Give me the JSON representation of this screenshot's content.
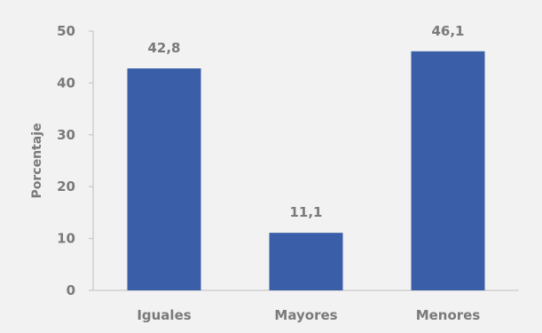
{
  "chart_data": {
    "type": "bar",
    "categories": [
      "Iguales",
      "Mayores",
      "Menores"
    ],
    "values": [
      42.8,
      11.1,
      46.1
    ],
    "value_labels": [
      "42,8",
      "11,1",
      "46,1"
    ],
    "title": "",
    "xlabel": "",
    "ylabel": "Porcentaje",
    "ylim": [
      0,
      50
    ],
    "yticks": [
      "0",
      "10",
      "20",
      "30",
      "40",
      "50"
    ],
    "grid": false,
    "legend": "none",
    "bar_color": "#3a5fa8",
    "background_color": "#f2f2f2",
    "axis_color": "#bfbfbf",
    "text_color": "#7a7a7a"
  }
}
